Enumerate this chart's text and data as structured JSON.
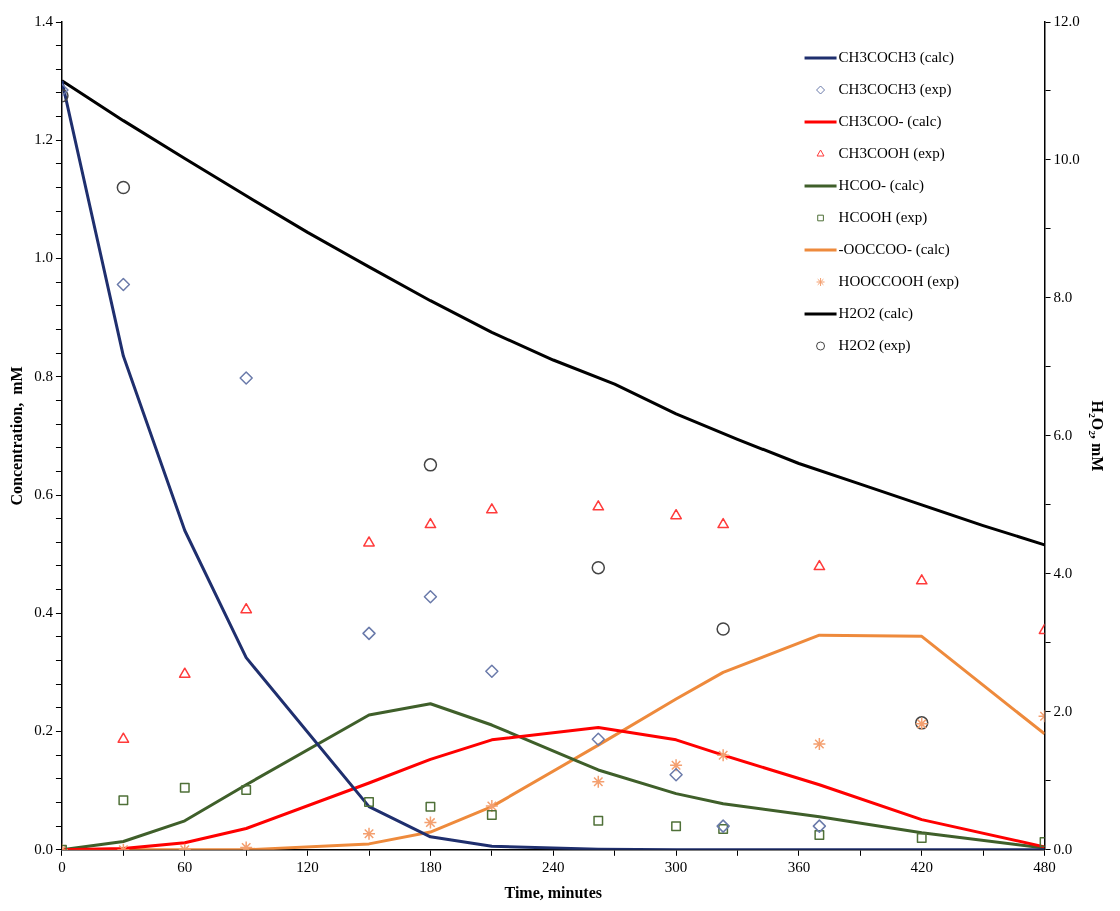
{
  "chart_data": {
    "type": "line",
    "xlabel": "Time, minutes",
    "ylabel": "Concentration,  mM",
    "y2label": "H₂O₂, mM",
    "xlim": [
      0,
      480
    ],
    "xticks": [
      0,
      {
        "value": 30,
        "label": null
      },
      60,
      {
        "value": 90,
        "label": null
      },
      120,
      {
        "value": 150,
        "label": null
      },
      180,
      {
        "value": 210,
        "label": null
      },
      240,
      {
        "value": 270,
        "label": null
      },
      300,
      {
        "value": 330,
        "label": null
      },
      360,
      {
        "value": 390,
        "label": null
      },
      420,
      {
        "value": 450,
        "label": null
      },
      480
    ],
    "ylim": [
      0,
      1.4
    ],
    "yticks": [
      {
        "value": 0,
        "label": "0.0"
      },
      {
        "value": 0.04,
        "label": null
      },
      {
        "value": 0.08,
        "label": null
      },
      {
        "value": 0.12,
        "label": null
      },
      {
        "value": 0.16,
        "label": null
      },
      {
        "value": 0.2,
        "label": "0.2"
      },
      {
        "value": 0.24,
        "label": null
      },
      {
        "value": 0.28,
        "label": null
      },
      {
        "value": 0.32,
        "label": null
      },
      {
        "value": 0.36,
        "label": null
      },
      {
        "value": 0.4,
        "label": "0.4"
      },
      {
        "value": 0.44,
        "label": null
      },
      {
        "value": 0.48,
        "label": null
      },
      {
        "value": 0.52,
        "label": null
      },
      {
        "value": 0.56,
        "label": null
      },
      {
        "value": 0.6,
        "label": "0.6"
      },
      {
        "value": 0.64,
        "label": null
      },
      {
        "value": 0.68,
        "label": null
      },
      {
        "value": 0.72,
        "label": null
      },
      {
        "value": 0.76,
        "label": null
      },
      {
        "value": 0.8,
        "label": "0.8"
      },
      {
        "value": 0.84,
        "label": null
      },
      {
        "value": 0.88,
        "label": null
      },
      {
        "value": 0.92,
        "label": null
      },
      {
        "value": 0.96,
        "label": null
      },
      {
        "value": 1.0,
        "label": "1.0"
      },
      {
        "value": 1.04,
        "label": null
      },
      {
        "value": 1.08,
        "label": null
      },
      {
        "value": 1.12,
        "label": null
      },
      {
        "value": 1.16,
        "label": null
      },
      {
        "value": 1.2,
        "label": "1.2"
      },
      {
        "value": 1.24,
        "label": null
      },
      {
        "value": 1.28,
        "label": null
      },
      {
        "value": 1.32,
        "label": null
      },
      {
        "value": 1.36,
        "label": null
      },
      {
        "value": 1.4,
        "label": "1.4"
      }
    ],
    "y2lim": [
      0,
      12
    ],
    "y2ticks": [
      {
        "value": 0,
        "label": "0.0"
      },
      {
        "value": 1,
        "label": null
      },
      {
        "value": 2,
        "label": "2.0"
      },
      {
        "value": 3,
        "label": null
      },
      {
        "value": 4,
        "label": "4.0"
      },
      {
        "value": 5,
        "label": null
      },
      {
        "value": 6,
        "label": "6.0"
      },
      {
        "value": 7,
        "label": null
      },
      {
        "value": 8,
        "label": "8.0"
      },
      {
        "value": 9,
        "label": null
      },
      {
        "value": 10,
        "label": "10.0"
      },
      {
        "value": 11,
        "label": null
      },
      {
        "value": 12,
        "label": "12.0"
      }
    ],
    "grid": false,
    "legend": "top right",
    "series": [
      {
        "name": "CH3COCH3 (calc)",
        "type": "line",
        "marker": "none",
        "color": "#1f2f6e",
        "x": [
          0,
          30,
          60,
          90,
          150,
          180,
          210,
          262,
          300,
          323,
          370,
          420,
          480
        ],
        "values": [
          1.3,
          0.835,
          0.54,
          0.325,
          0.073,
          0.022,
          0.006,
          0.001,
          0,
          0,
          0,
          0,
          0
        ]
      },
      {
        "name": "CH3COCH3 (exp)",
        "type": "scatter",
        "marker": "diamond",
        "color": "#6a7aaa",
        "x": [
          0,
          30,
          90,
          150,
          180,
          210,
          262,
          300,
          323,
          370
        ],
        "values": [
          1.285,
          0.956,
          0.798,
          0.366,
          0.428,
          0.302,
          0.187,
          0.127,
          0.04,
          0.04
        ]
      },
      {
        "name": "CH3COO- (calc)",
        "type": "line",
        "marker": "none",
        "color": "#ff0000",
        "x": [
          0,
          30,
          60,
          90,
          150,
          180,
          210,
          262,
          300,
          323,
          370,
          420,
          480
        ],
        "values": [
          0,
          0.002,
          0.012,
          0.036,
          0.113,
          0.153,
          0.186,
          0.207,
          0.186,
          0.16,
          0.11,
          0.051,
          0.005
        ]
      },
      {
        "name": "CH3COOH (exp)",
        "type": "scatter",
        "marker": "triangle",
        "color": "#ff3b3b",
        "x": [
          30,
          60,
          90,
          150,
          180,
          210,
          262,
          300,
          323,
          370,
          420,
          480
        ],
        "values": [
          0.187,
          0.297,
          0.406,
          0.519,
          0.55,
          0.575,
          0.58,
          0.565,
          0.55,
          0.479,
          0.455,
          0.371
        ]
      },
      {
        "name": "HCOO- (calc)",
        "type": "line",
        "marker": "none",
        "color": "#3f5f2a",
        "x": [
          0,
          30,
          60,
          90,
          150,
          180,
          210,
          262,
          300,
          323,
          370,
          420,
          480
        ],
        "values": [
          0,
          0.014,
          0.049,
          0.11,
          0.228,
          0.247,
          0.211,
          0.135,
          0.095,
          0.078,
          0.056,
          0.029,
          0.003
        ]
      },
      {
        "name": "HCOOH (exp)",
        "type": "scatter",
        "marker": "square",
        "color": "#4f7038",
        "x": [
          0,
          30,
          60,
          90,
          150,
          180,
          210,
          262,
          300,
          323,
          370,
          420,
          480
        ],
        "values": [
          0,
          0.084,
          0.105,
          0.101,
          0.081,
          0.073,
          0.059,
          0.049,
          0.04,
          0.035,
          0.025,
          0.02,
          0.013
        ]
      },
      {
        "name": "-OOCCOO- (calc)",
        "type": "line",
        "marker": "none",
        "color": "#ee8a3c",
        "x": [
          0,
          30,
          60,
          90,
          150,
          180,
          210,
          262,
          300,
          323,
          370,
          420,
          480
        ],
        "values": [
          0,
          0,
          0,
          0,
          0.01,
          0.03,
          0.073,
          0.177,
          0.255,
          0.3,
          0.363,
          0.361,
          0.196
        ]
      },
      {
        "name": "HOOCCOOH (exp)",
        "type": "scatter",
        "marker": "cross",
        "color": "#f4a070",
        "x": [
          0,
          30,
          60,
          90,
          150,
          180,
          210,
          262,
          300,
          323,
          370,
          420,
          480
        ],
        "values": [
          0,
          0,
          0,
          0.004,
          0.027,
          0.046,
          0.074,
          0.115,
          0.143,
          0.16,
          0.179,
          0.213,
          0.226
        ]
      },
      {
        "name": "H2O2 (calc)",
        "type": "line",
        "marker": "none",
        "axis": "y2",
        "color": "#000000",
        "x": [
          0,
          30,
          60,
          90,
          120,
          150,
          180,
          210,
          240,
          270,
          300,
          330,
          360,
          390,
          420,
          450,
          480
        ],
        "values": [
          11.15,
          10.57,
          10.02,
          9.48,
          8.95,
          8.45,
          7.96,
          7.5,
          7.1,
          6.75,
          6.32,
          5.95,
          5.6,
          5.3,
          5.0,
          4.7,
          4.42
        ]
      },
      {
        "name": "H2O2 (exp)",
        "type": "scatter",
        "marker": "circle",
        "axis": "y2",
        "color": "#444444",
        "x": [
          0,
          30,
          180,
          262,
          323,
          420
        ],
        "values": [
          10.93,
          9.6,
          5.58,
          4.09,
          3.2,
          1.84
        ]
      }
    ]
  }
}
